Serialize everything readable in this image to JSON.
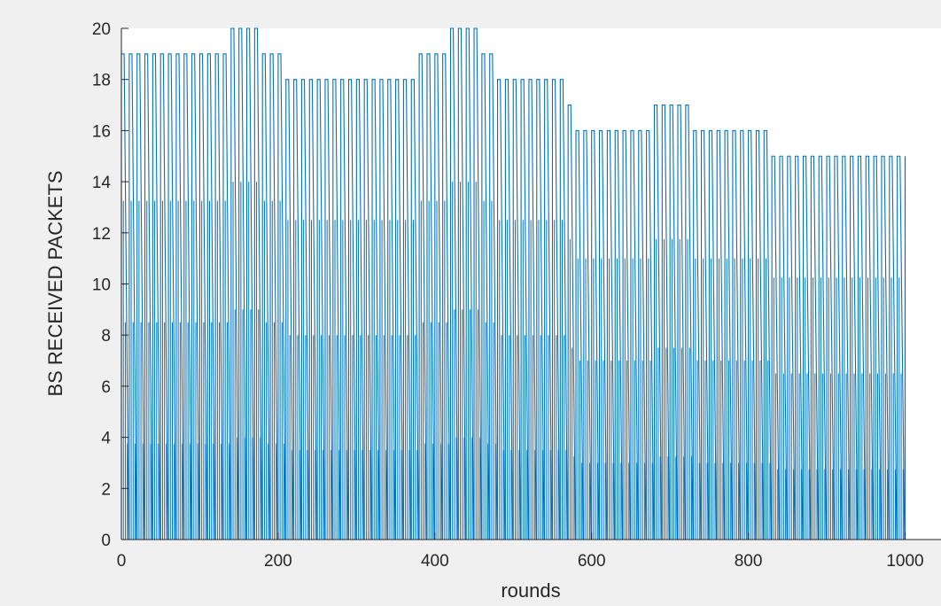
{
  "chart_data": {
    "type": "line",
    "title": "",
    "xlabel": "rounds",
    "ylabel": "BS RECEIVED PACKETS",
    "xlim": [
      0,
      1000
    ],
    "ylim": [
      0,
      20
    ],
    "xticks": [
      0,
      200,
      400,
      600,
      800,
      1000
    ],
    "yticks": [
      0,
      2,
      4,
      6,
      8,
      10,
      12,
      14,
      16,
      18,
      20
    ],
    "grid": false,
    "line_color": "#0072bd",
    "series_peaks": [
      {
        "rounds": [
          0,
          140
        ],
        "peak": 19
      },
      {
        "rounds": [
          140,
          180
        ],
        "peak": 20
      },
      {
        "rounds": [
          180,
          210
        ],
        "peak": 19
      },
      {
        "rounds": [
          210,
          380
        ],
        "peak": 18
      },
      {
        "rounds": [
          380,
          420
        ],
        "peak": 19
      },
      {
        "rounds": [
          420,
          460
        ],
        "peak": 20
      },
      {
        "rounds": [
          460,
          480
        ],
        "peak": 19
      },
      {
        "rounds": [
          480,
          570
        ],
        "peak": 18
      },
      {
        "rounds": [
          570,
          580
        ],
        "peak": 17
      },
      {
        "rounds": [
          580,
          680
        ],
        "peak": 16
      },
      {
        "rounds": [
          680,
          730
        ],
        "peak": 17
      },
      {
        "rounds": [
          730,
          830
        ],
        "peak": 16
      },
      {
        "rounds": [
          830,
          1000
        ],
        "peak": 15
      }
    ],
    "note_pattern": "each round cycle: packets count falls from peak to 0 and resets (sawtooth)"
  }
}
